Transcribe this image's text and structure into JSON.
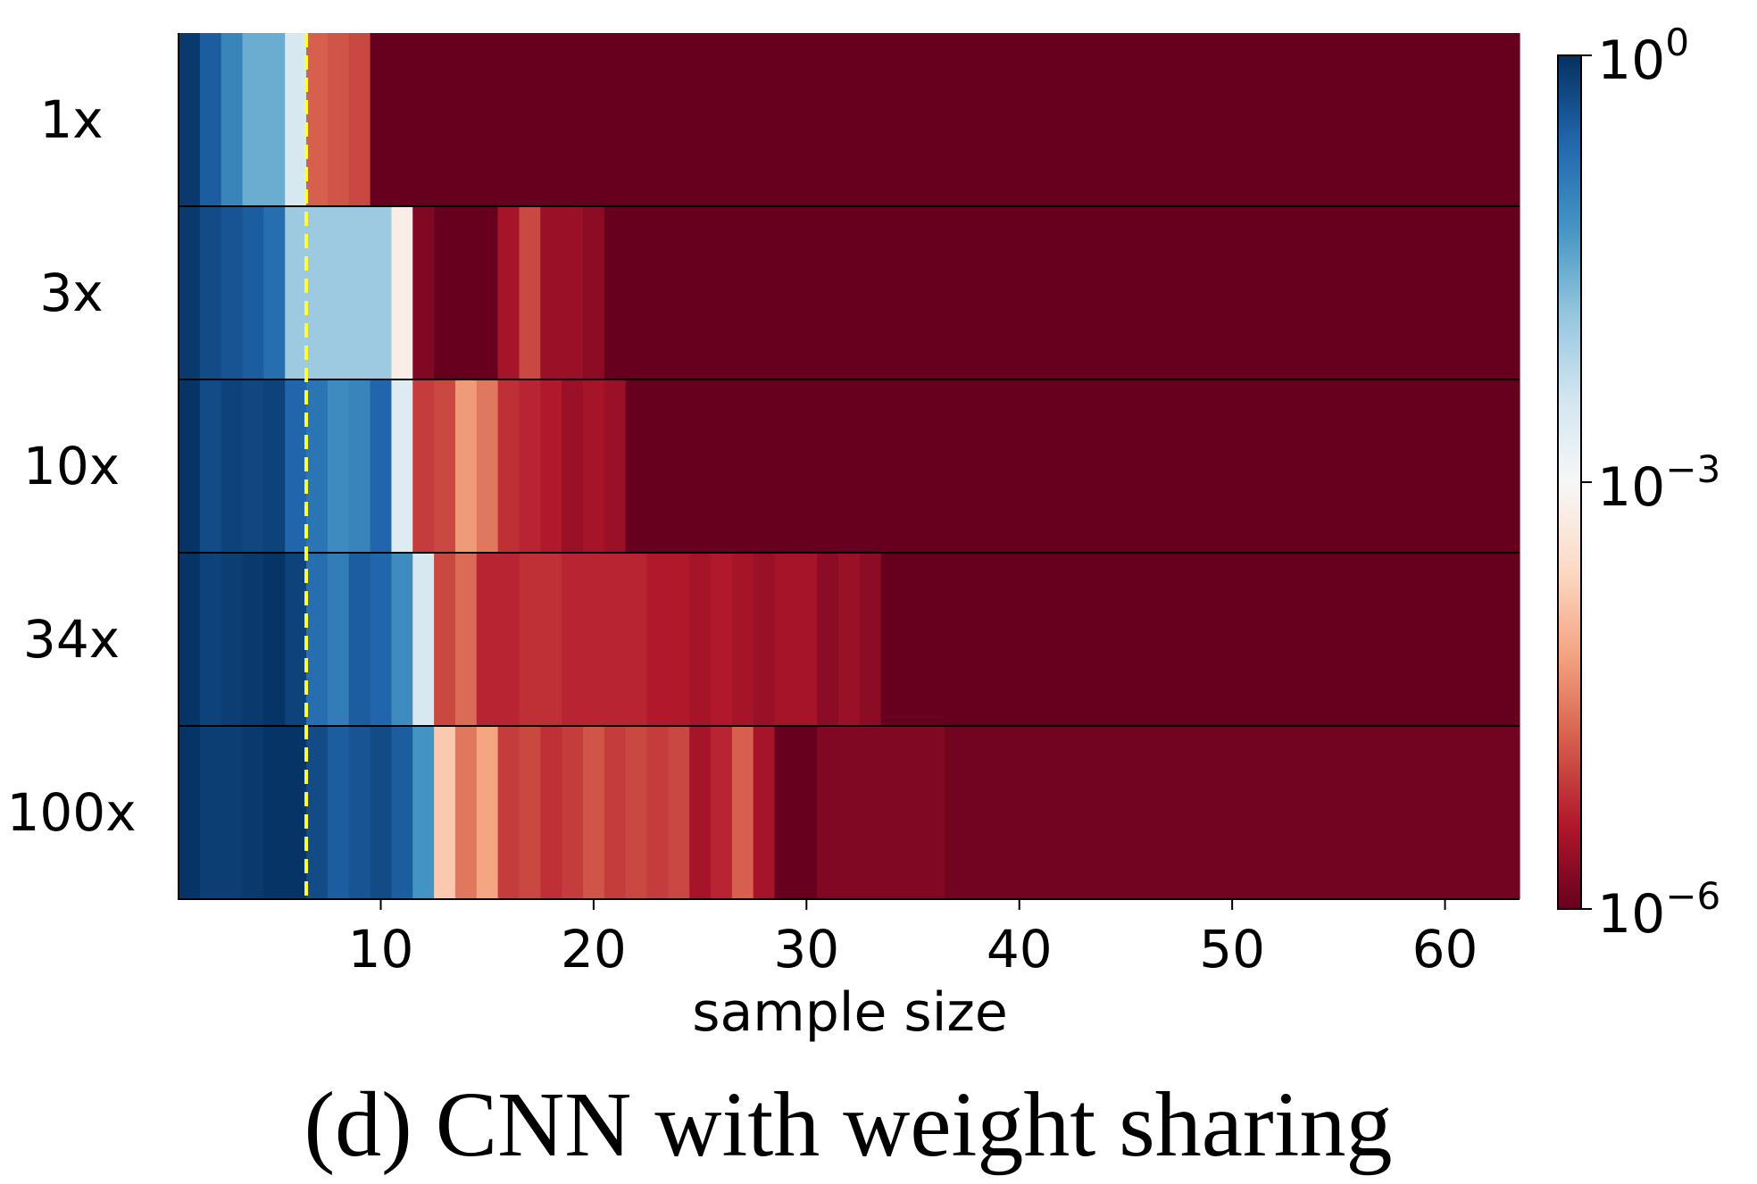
{
  "caption": "(d) CNN with weight sharing",
  "chart_data": {
    "type": "heatmap",
    "xlabel": "sample size",
    "ylabel": "",
    "x_range": [
      0.5,
      63.5
    ],
    "x_ticks": [
      10,
      20,
      30,
      40,
      50,
      60
    ],
    "rows": [
      "1x",
      "3x",
      "10x",
      "34x",
      "100x"
    ],
    "colorbar": {
      "scale": "log",
      "range": [
        1e-06,
        1
      ],
      "ticks": [
        {
          "value": 1e-06,
          "base": "10",
          "exp": "−6"
        },
        {
          "value": 0.001,
          "base": "10",
          "exp": "−3"
        },
        {
          "value": 1,
          "base": "10",
          "exp": "0"
        }
      ],
      "colormap": "RdBu",
      "stops": [
        "#67001f",
        "#b2182b",
        "#d6604d",
        "#f4a582",
        "#fddbc7",
        "#f7f7f7",
        "#d1e5f0",
        "#92c5de",
        "#4393c3",
        "#2166ac",
        "#053061"
      ]
    },
    "threshold_line": {
      "x": 6.5,
      "color": "#ffff33",
      "style": "dashed"
    },
    "log10_values": {
      "1x": [
        -0.1,
        -0.5,
        -1.0,
        -1.5,
        -1.5,
        -2.5,
        -4.8,
        -4.9,
        -5.0,
        -6,
        -6,
        -6,
        -6,
        -6,
        -6,
        -6,
        -6,
        -6,
        -6,
        -6,
        -6,
        -6,
        -6,
        -6,
        -6,
        -6,
        -6,
        -6,
        -6,
        -6,
        -6,
        -6,
        -6,
        -6,
        -6,
        -6,
        -6,
        -6,
        -6,
        -6,
        -6,
        -6,
        -6,
        -6,
        -6,
        -6,
        -6,
        -6,
        -6,
        -6,
        -6,
        -6,
        -6,
        -6,
        -6,
        -6,
        -6,
        -6,
        -6,
        -6,
        -6,
        -6,
        -6
      ],
      "3x": [
        -0.1,
        -0.3,
        -0.4,
        -0.5,
        -0.7,
        -1.9,
        -1.9,
        -1.9,
        -1.9,
        -1.9,
        -3.2,
        -5.8,
        -6,
        -6,
        -6,
        -5.5,
        -5.0,
        -5.6,
        -5.6,
        -5.7,
        -6,
        -6,
        -6,
        -6,
        -6,
        -6,
        -6,
        -6,
        -6,
        -6,
        -6,
        -6,
        -6,
        -6,
        -6,
        -6,
        -6,
        -6,
        -6,
        -6,
        -6,
        -6,
        -6,
        -6,
        -6,
        -6,
        -6,
        -6,
        -6,
        -6,
        -6,
        -6,
        -6,
        -6,
        -6,
        -6,
        -6,
        -6,
        -6,
        -6,
        -6,
        -6,
        -6
      ],
      "10x": [
        -0.05,
        -0.3,
        -0.2,
        -0.25,
        -0.2,
        -0.6,
        -0.8,
        -1.1,
        -1.0,
        -0.6,
        -2.6,
        -5.1,
        -5.0,
        -4.3,
        -4.6,
        -5.2,
        -5.3,
        -5.4,
        -5.6,
        -5.5,
        -5.6,
        -6,
        -6,
        -6,
        -6,
        -6,
        -6,
        -6,
        -6,
        -6,
        -6,
        -6,
        -6,
        -6,
        -6,
        -6,
        -6,
        -6,
        -6,
        -6,
        -6,
        -6,
        -6,
        -6,
        -6,
        -6,
        -6,
        -6,
        -6,
        -6,
        -6,
        -6,
        -6,
        -6,
        -6,
        -6,
        -6,
        -6,
        -6,
        -6,
        -6,
        -6,
        -6
      ],
      "34x": [
        -0.05,
        -0.2,
        -0.15,
        -0.1,
        -0.05,
        -0.2,
        -0.7,
        -0.9,
        -0.5,
        -0.6,
        -1.1,
        -2.5,
        -5.0,
        -4.7,
        -5.3,
        -5.3,
        -5.2,
        -5.2,
        -5.3,
        -5.3,
        -5.3,
        -5.3,
        -5.4,
        -5.4,
        -5.5,
        -5.4,
        -5.5,
        -5.6,
        -5.5,
        -5.5,
        -5.7,
        -5.6,
        -5.7,
        -6,
        -6,
        -6,
        -6,
        -6,
        -6,
        -6,
        -6,
        -6,
        -6,
        -6,
        -6,
        -6,
        -6,
        -6,
        -6,
        -6,
        -6,
        -6,
        -6,
        -6,
        -6,
        -6,
        -6,
        -6,
        -6,
        -6,
        -6,
        -6,
        -6
      ],
      "100x": [
        -0.05,
        -0.15,
        -0.15,
        -0.1,
        -0.05,
        -0.05,
        -0.3,
        -0.5,
        -0.4,
        -0.3,
        -0.5,
        -1.2,
        -3.8,
        -4.6,
        -4.2,
        -5.1,
        -5.0,
        -5.2,
        -5.1,
        -4.9,
        -5.1,
        -5.0,
        -5.1,
        -5.0,
        -5.5,
        -5.3,
        -4.8,
        -5.5,
        -6,
        -6,
        -5.8,
        -5.8,
        -5.8,
        -5.8,
        -5.8,
        -5.8,
        -5.9,
        -5.9,
        -5.9,
        -5.9,
        -5.9,
        -5.9,
        -5.9,
        -5.9,
        -5.9,
        -5.9,
        -5.9,
        -5.9,
        -5.9,
        -5.9,
        -5.9,
        -5.9,
        -5.9,
        -5.9,
        -5.9,
        -5.9,
        -5.9,
        -5.9,
        -5.9,
        -5.9,
        -5.9,
        -5.9,
        -5.9
      ]
    }
  }
}
